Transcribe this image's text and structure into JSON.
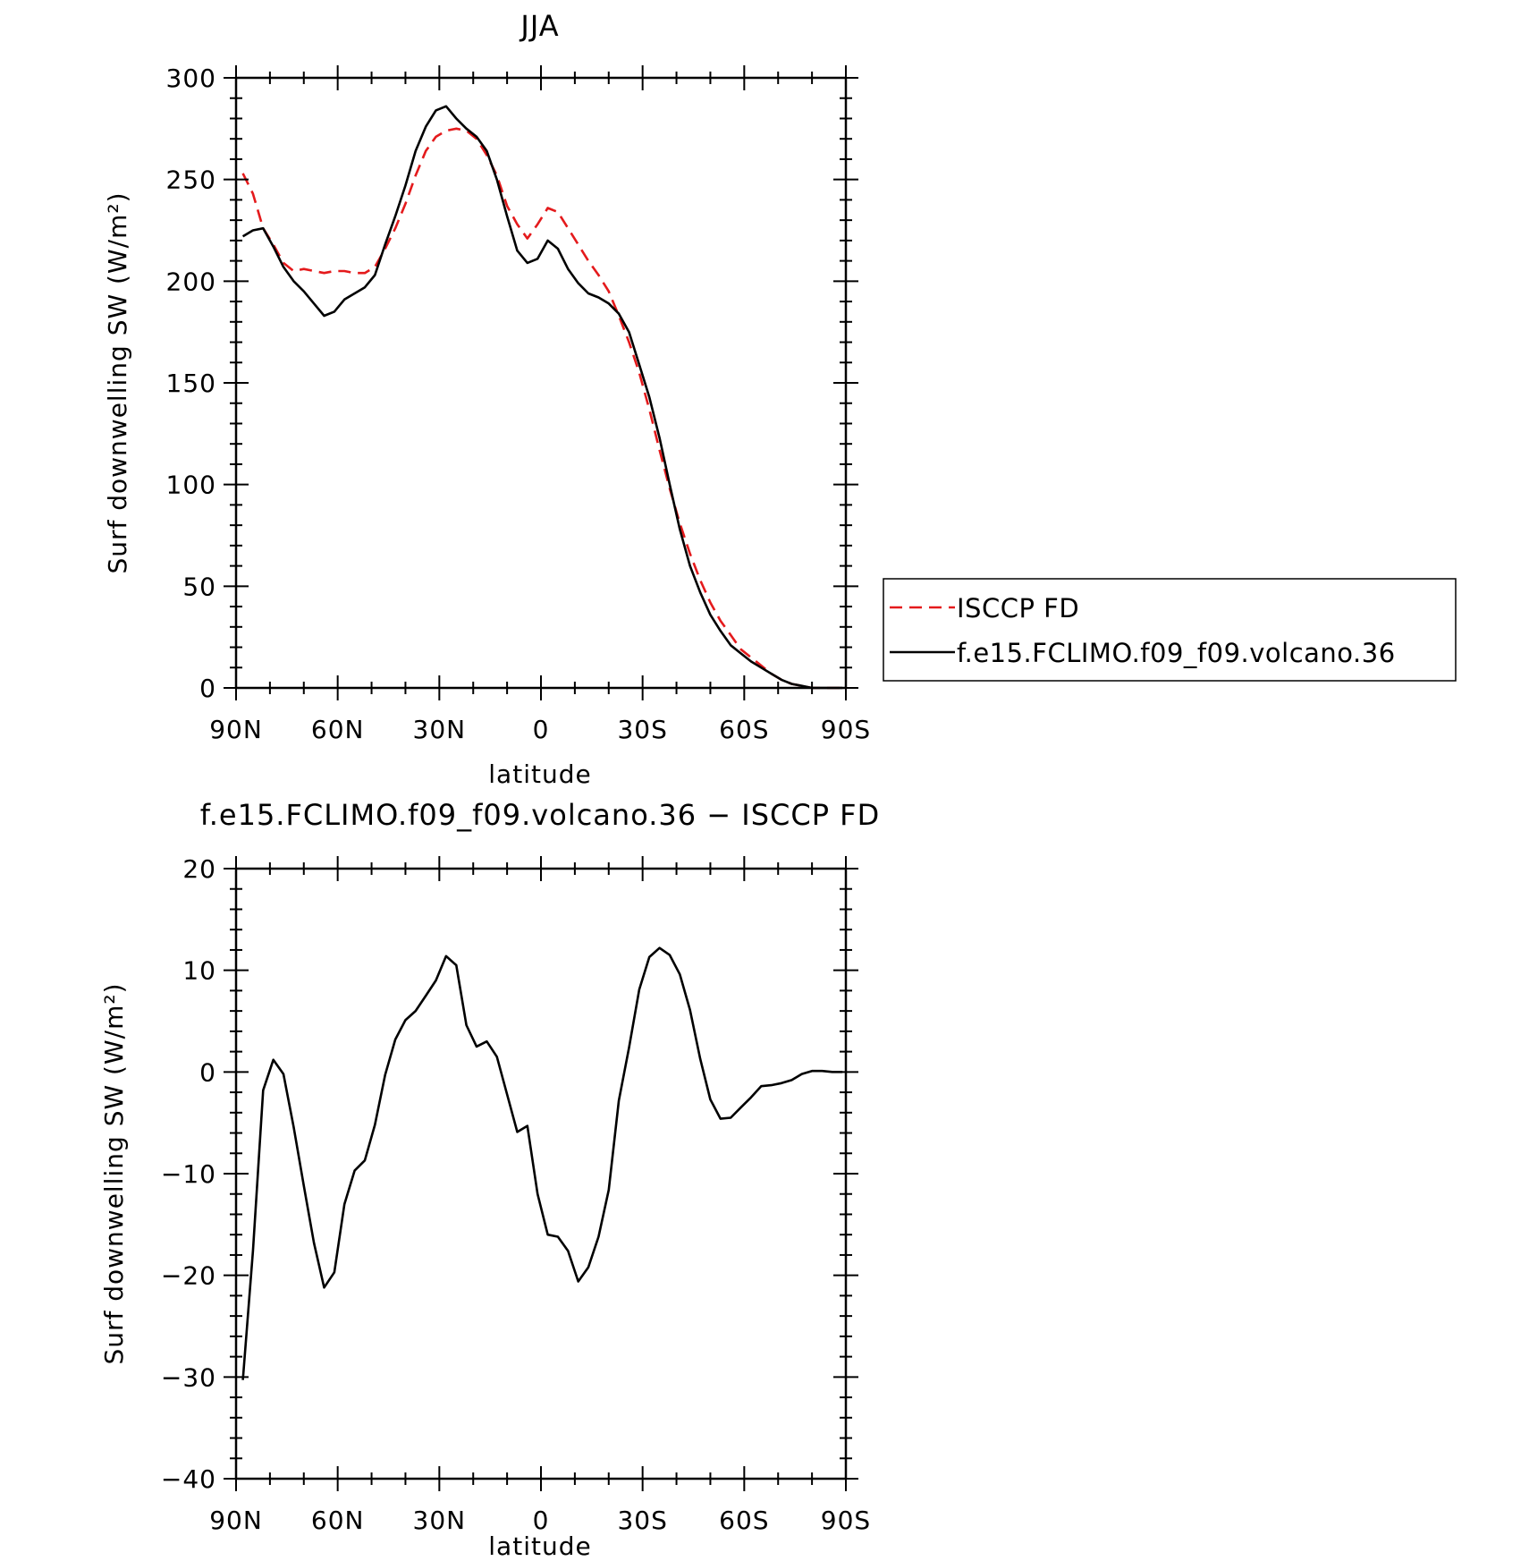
{
  "chart_data": [
    {
      "type": "line",
      "title": "JJA",
      "xlabel": "latitude",
      "ylabel": "Surf downwelling SW (W/m²)",
      "ylim": [
        0,
        300
      ],
      "yticks": [
        0,
        50,
        100,
        150,
        200,
        250,
        300
      ],
      "x_range": [
        90,
        -90
      ],
      "xticks": [
        90,
        60,
        30,
        0,
        -30,
        -60,
        -90
      ],
      "xticklabels": [
        "90N",
        "60N",
        "30N",
        "0",
        "30S",
        "60S",
        "90S"
      ],
      "x": [
        88,
        85,
        82,
        79,
        76,
        73,
        70,
        67,
        64,
        61,
        58,
        55,
        52,
        49,
        46,
        43,
        40,
        37,
        34,
        31,
        28,
        25,
        22,
        19,
        16,
        13,
        10,
        7,
        4,
        1,
        -2,
        -5,
        -8,
        -11,
        -14,
        -17,
        -20,
        -23,
        -26,
        -29,
        -32,
        -35,
        -38,
        -41,
        -44,
        -47,
        -50,
        -53,
        -56,
        -59,
        -62,
        -65,
        -68,
        -71,
        -74,
        -77,
        -80,
        -83,
        -86,
        -89
      ],
      "series": [
        {
          "name": "ISCCP FD",
          "color": "#e41a1c",
          "dash": "dashed",
          "values": [
            253,
            243,
            226,
            218,
            209,
            205,
            206,
            205,
            204,
            205,
            205,
            204,
            204,
            207,
            216,
            226,
            238,
            252,
            264,
            271,
            274,
            275,
            274,
            270,
            262,
            252,
            237,
            228,
            221,
            228,
            236,
            234,
            226,
            218,
            210,
            203,
            195,
            183,
            170,
            155,
            137,
            117,
            98,
            81,
            66,
            53,
            42,
            33,
            26,
            19,
            15,
            11,
            7,
            4,
            2,
            1,
            0,
            0,
            0,
            0
          ]
        },
        {
          "name": "f.e15.FCLIMO.f09_f09.volcano.36",
          "color": "#000000",
          "dash": "solid",
          "values": [
            222,
            225,
            226,
            217,
            207,
            200,
            195,
            189,
            183,
            185,
            191,
            194,
            197,
            203,
            218,
            232,
            247,
            264,
            276,
            284,
            286,
            280,
            275,
            271,
            264,
            250,
            232,
            215,
            209,
            211,
            220,
            216,
            206,
            199,
            194,
            192,
            189,
            184,
            175,
            159,
            143,
            123,
            100,
            78,
            60,
            47,
            36,
            28,
            21,
            17,
            13,
            10,
            7,
            4,
            2,
            1,
            0,
            0,
            0,
            0
          ]
        }
      ],
      "legend": {
        "placement": "right",
        "entries": [
          "ISCCP FD",
          "f.e15.FCLIMO.f09_f09.volcano.36"
        ]
      },
      "grid": false
    },
    {
      "type": "line",
      "title": "f.e15.FCLIMO.f09_f09.volcano.36 − ISCCP FD",
      "xlabel": "latitude",
      "ylabel": "Surf downwelling SW (W/m²)",
      "ylim": [
        -40,
        20
      ],
      "yticks": [
        -40,
        -30,
        -20,
        -10,
        0,
        10,
        20
      ],
      "yticklabels": [
        "−40",
        "−30",
        "−20",
        "−10",
        "0",
        "10",
        "20"
      ],
      "x_range": [
        90,
        -90
      ],
      "xticks": [
        90,
        60,
        30,
        0,
        -30,
        -60,
        -90
      ],
      "xticklabels": [
        "90N",
        "60N",
        "30N",
        "0",
        "30S",
        "60S",
        "90S"
      ],
      "x": [
        88,
        85,
        82,
        79,
        76,
        73,
        70,
        67,
        64,
        61,
        58,
        55,
        52,
        49,
        46,
        43,
        40,
        37,
        34,
        31,
        28,
        25,
        22,
        19,
        16,
        13,
        10,
        7,
        4,
        1,
        -2,
        -5,
        -8,
        -11,
        -14,
        -17,
        -20,
        -23,
        -26,
        -29,
        -32,
        -35,
        -38,
        -41,
        -44,
        -47,
        -50,
        -53,
        -56,
        -59,
        -62,
        -65,
        -68,
        -71,
        -74,
        -77,
        -80,
        -83,
        -86,
        -89
      ],
      "series": [
        {
          "color": "#000000",
          "dash": "solid",
          "values": [
            -30.3,
            -17.6,
            -1.8,
            1.2,
            -0.2,
            -5.4,
            -11.2,
            -16.8,
            -21.2,
            -19.7,
            -13,
            -9.7,
            -8.7,
            -5.2,
            -0.3,
            3.2,
            5.1,
            6,
            7.5,
            9,
            11.4,
            10.5,
            4.6,
            2.5,
            3,
            1.5,
            -2.2,
            -5.9,
            -5.3,
            -12,
            -16,
            -16.2,
            -17.6,
            -20.6,
            -19.2,
            -16.2,
            -11.6,
            -2.8,
            2.4,
            8.1,
            11.3,
            12.2,
            11.5,
            9.6,
            6.1,
            1.3,
            -2.7,
            -4.6,
            -4.5,
            -3.5,
            -2.5,
            -1.4,
            -1.3,
            -1.1,
            -0.8,
            -0.2,
            0.1,
            0.1,
            0,
            0
          ]
        }
      ],
      "grid": false
    }
  ]
}
